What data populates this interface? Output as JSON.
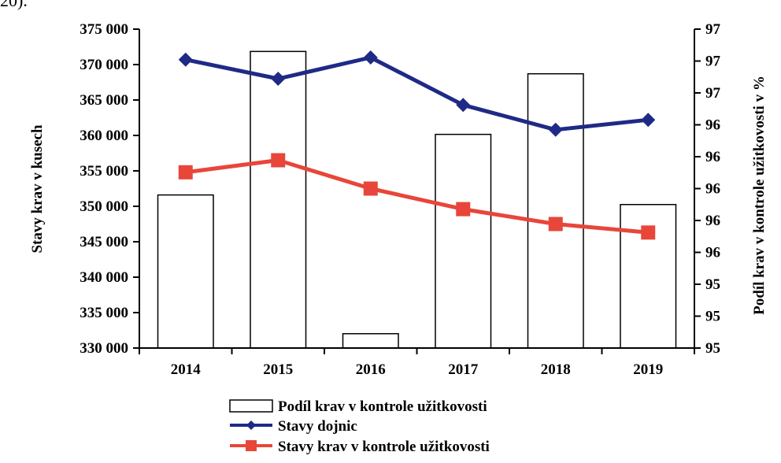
{
  "page": {
    "top_fragment": "20)."
  },
  "chart_data": {
    "type": "bar",
    "categories": [
      "2014",
      "2015",
      "2016",
      "2017",
      "2018",
      "2019"
    ],
    "y_left": {
      "label": "Stavy krav v kusech",
      "ylim": [
        330000,
        375000
      ],
      "ticks": [
        "330 000",
        "335 000",
        "340 000",
        "345 000",
        "350 000",
        "355 000",
        "360 000",
        "365 000",
        "370 000",
        "375 000"
      ]
    },
    "y_right": {
      "label": "Podíl krav v kontrole užitkovosti v %",
      "ylim": [
        95.0,
        97.0
      ],
      "ticks": [
        "95",
        "95",
        "95",
        "96",
        "96",
        "96",
        "96",
        "96",
        "97",
        "97",
        "97"
      ]
    },
    "series": [
      {
        "name": "Podíl krav v kontrole užitkovosti",
        "kind": "bar",
        "axis": "right",
        "color": "#ffffff",
        "values": [
          95.96,
          96.86,
          95.09,
          96.34,
          96.72,
          95.9
        ]
      },
      {
        "name": "Stavy dojnic",
        "kind": "line",
        "axis": "left",
        "color": "#1f2a86",
        "marker": "diamond",
        "values": [
          370700,
          368000,
          371000,
          364300,
          360800,
          362200
        ]
      },
      {
        "name": "Stavy krav v kontrole užitkovosti",
        "kind": "line",
        "axis": "left",
        "color": "#e8463a",
        "marker": "square",
        "values": [
          354800,
          356500,
          352500,
          349600,
          347500,
          346300
        ]
      }
    ],
    "legend_position": "bottom",
    "grid": false
  }
}
